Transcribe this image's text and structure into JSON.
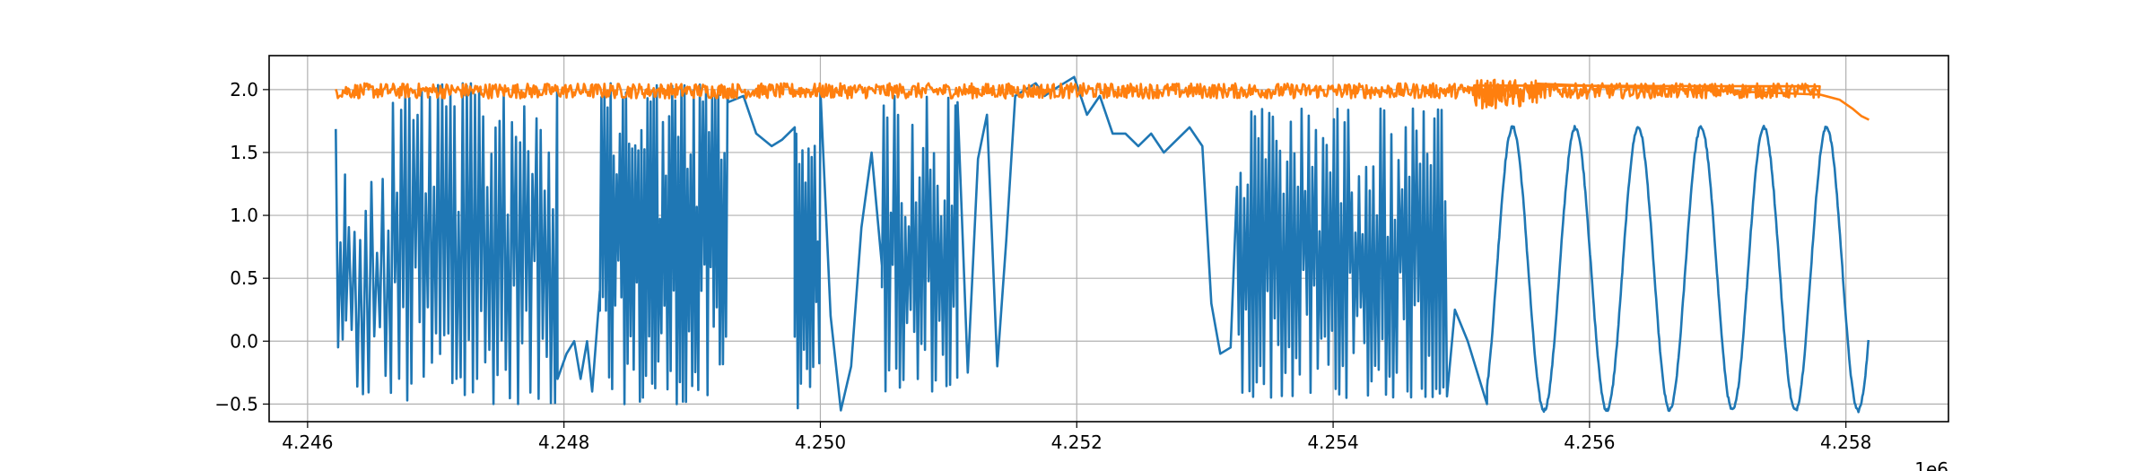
{
  "chart_data": {
    "type": "line",
    "title": "",
    "xlabel": "",
    "ylabel": "",
    "x_offset_label": "1e6",
    "xlim": [
      4.2457,
      4.2588
    ],
    "ylim": [
      -0.64,
      2.27
    ],
    "grid": true,
    "legend": "none",
    "x_ticks": [
      4.246,
      4.248,
      4.25,
      4.252,
      4.254,
      4.256,
      4.258
    ],
    "x_tick_labels": [
      "4.246",
      "4.248",
      "4.250",
      "4.252",
      "4.254",
      "4.256",
      "4.258"
    ],
    "y_ticks": [
      -0.5,
      0.0,
      0.5,
      1.0,
      1.5,
      2.0
    ],
    "y_tick_labels": [
      "−0.5",
      "0.0",
      "0.5",
      "1.0",
      "1.5",
      "2.0"
    ],
    "series": [
      {
        "color": "#1f77b4",
        "segments": [
          {
            "kind": "noise",
            "x": [
              4.24622,
              4.2463
            ],
            "range": [
              -0.45,
              1.78
            ],
            "step": 1.8e-05
          },
          {
            "kind": "noise",
            "x": [
              4.2463,
              4.24665
            ],
            "range": [
              -0.45,
              1.3
            ],
            "step": 2.2e-05
          },
          {
            "kind": "noise",
            "x": [
              4.24665,
              4.24795
            ],
            "range": [
              -0.5,
              2.05
            ],
            "step": 1.6e-05
          },
          {
            "kind": "points",
            "x": [
              4.24795,
              4.24802,
              4.24808,
              4.24813,
              4.24818,
              4.24822,
              4.24828
            ],
            "y": [
              -0.3,
              -0.1,
              0.0,
              -0.3,
              0.0,
              -0.4,
              0.4
            ]
          },
          {
            "kind": "noise",
            "x": [
              4.24828,
              4.24928
            ],
            "range": [
              -0.5,
              2.05
            ],
            "step": 1.2e-05
          },
          {
            "kind": "points",
            "x": [
              4.24928,
              4.2494,
              4.2495,
              4.24962,
              4.2497,
              4.2498
            ],
            "y": [
              1.9,
              1.95,
              1.65,
              1.55,
              1.6,
              1.7
            ]
          },
          {
            "kind": "noise",
            "x": [
              4.2498,
              4.25
            ],
            "range": [
              -0.55,
              1.65
            ],
            "step": 1.2e-05
          },
          {
            "kind": "points",
            "x": [
              4.25,
              4.25008,
              4.25016,
              4.25024,
              4.25032,
              4.2504,
              4.25048
            ],
            "y": [
              2.0,
              0.2,
              -0.55,
              -0.2,
              0.9,
              1.5,
              0.6
            ]
          },
          {
            "kind": "noise",
            "x": [
              4.25048,
              4.25107
            ],
            "range": [
              -0.4,
              1.95
            ],
            "step": 1.4e-05
          },
          {
            "kind": "points",
            "x": [
              4.25107,
              4.25115,
              4.25123,
              4.2513,
              4.25138,
              4.25145,
              4.25152,
              4.2516,
              4.25168,
              4.25175,
              4.25182,
              4.2519,
              4.25198,
              4.25208,
              4.25218,
              4.25228,
              4.25238,
              4.25248,
              4.25258,
              4.25268,
              4.25278,
              4.25288,
              4.25298
            ],
            "y": [
              1.9,
              -0.25,
              1.45,
              1.8,
              -0.2,
              0.8,
              1.95,
              2.0,
              2.05,
              1.95,
              2.0,
              2.05,
              2.1,
              1.8,
              1.95,
              1.65,
              1.65,
              1.55,
              1.65,
              1.5,
              1.6,
              1.7,
              1.55
            ]
          },
          {
            "kind": "points",
            "x": [
              4.25305,
              4.25312,
              4.2532
            ],
            "y": [
              0.3,
              -0.1,
              -0.05
            ]
          },
          {
            "kind": "noise",
            "x": [
              4.25325,
              4.2549
            ],
            "range": [
              -0.45,
              1.85
            ],
            "step": 1.4e-05
          },
          {
            "kind": "points",
            "x": [
              4.25495,
              4.25505,
              4.2552
            ],
            "y": [
              0.25,
              0.0,
              -0.5
            ]
          },
          {
            "kind": "sine",
            "x": [
              4.2552,
              4.25818
            ],
            "low": -0.55,
            "high": 1.7,
            "period": 0.00049,
            "phase_peak": 4.2554
          }
        ]
      },
      {
        "color": "#ff7f0e",
        "segments": [
          {
            "kind": "noise",
            "x": [
              4.24622,
              4.2578
            ],
            "range": [
              1.93,
              2.05
            ],
            "step": 8e-06
          },
          {
            "kind": "noise",
            "x": [
              4.2551,
              4.2556
            ],
            "range": [
              1.85,
              2.08
            ],
            "step": 8e-06
          },
          {
            "kind": "points",
            "x": [
              4.2578,
              4.25795,
              4.25805,
              4.25812,
              4.25818
            ],
            "y": [
              1.96,
              1.92,
              1.85,
              1.79,
              1.76
            ]
          }
        ]
      }
    ]
  }
}
